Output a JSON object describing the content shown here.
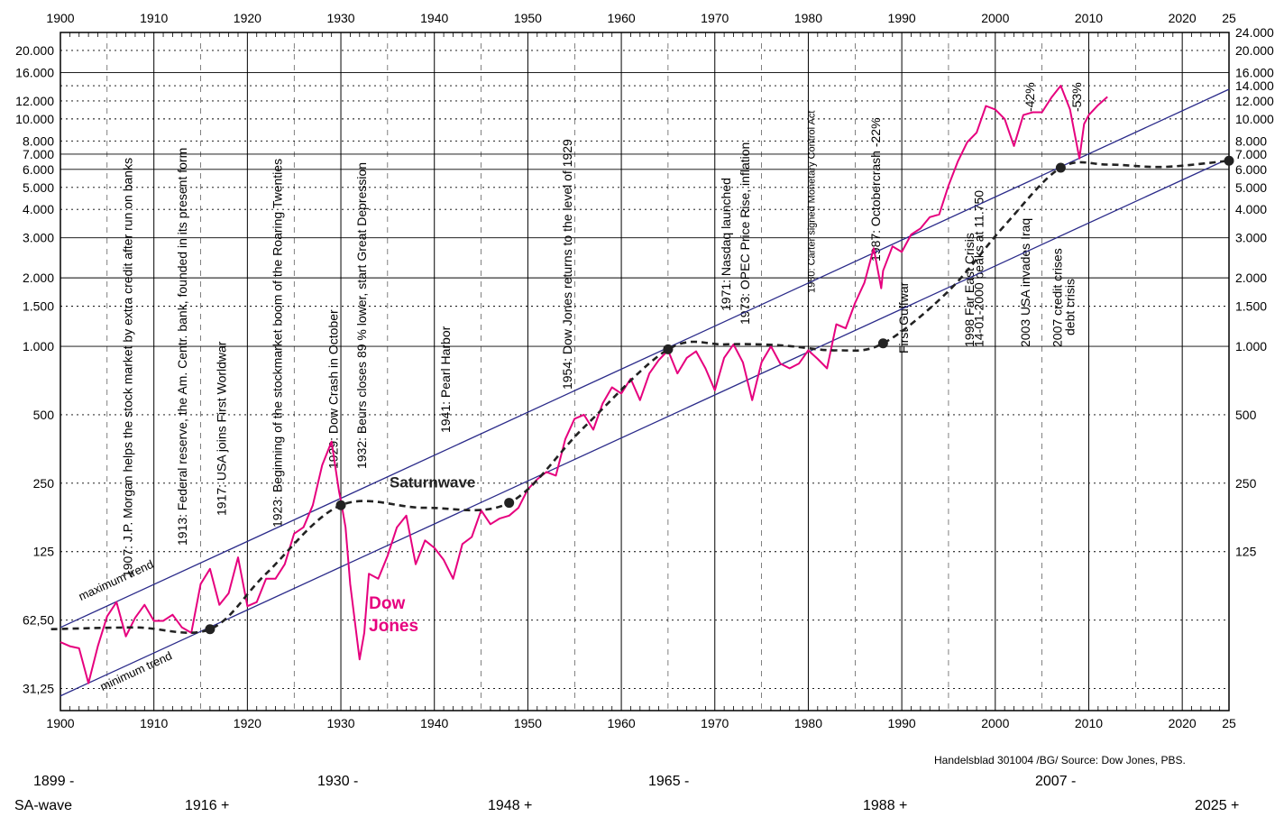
{
  "chart_data": {
    "type": "line",
    "x_axis": {
      "range": [
        1900,
        2025
      ],
      "tick_labels": [
        "1900",
        "1910",
        "1920",
        "1930",
        "1940",
        "1950",
        "1960",
        "1970",
        "1980",
        "1990",
        "2000",
        "2010",
        "2020",
        "25"
      ]
    },
    "y_axis": {
      "scale": "log",
      "range": [
        25,
        24000
      ],
      "left_tick_labels": [
        {
          "value": 31.25,
          "label": "31,25"
        },
        {
          "value": 62.5,
          "label": "62,50"
        },
        {
          "value": 125,
          "label": "125"
        },
        {
          "value": 250,
          "label": "250"
        },
        {
          "value": 500,
          "label": "500"
        },
        {
          "value": 1000,
          "label": "1.000"
        },
        {
          "value": 1500,
          "label": "1.500"
        },
        {
          "value": 2000,
          "label": "2.000"
        },
        {
          "value": 3000,
          "label": "3.000"
        },
        {
          "value": 4000,
          "label": "4.000"
        },
        {
          "value": 5000,
          "label": "5.000"
        },
        {
          "value": 6000,
          "label": "6.000"
        },
        {
          "value": 7000,
          "label": "7.000"
        },
        {
          "value": 8000,
          "label": "8.000"
        },
        {
          "value": 10000,
          "label": "10.000"
        },
        {
          "value": 12000,
          "label": "12.000"
        },
        {
          "value": 16000,
          "label": "16.000"
        },
        {
          "value": 20000,
          "label": "20.000"
        }
      ],
      "right_tick_labels": [
        {
          "value": 125,
          "label": "125"
        },
        {
          "value": 250,
          "label": "250"
        },
        {
          "value": 500,
          "label": "500"
        },
        {
          "value": 1000,
          "label": "1.000"
        },
        {
          "value": 1500,
          "label": "1.500"
        },
        {
          "value": 2000,
          "label": "2.000"
        },
        {
          "value": 3000,
          "label": "3.000"
        },
        {
          "value": 4000,
          "label": "4.000"
        },
        {
          "value": 5000,
          "label": "5.000"
        },
        {
          "value": 6000,
          "label": "6.000"
        },
        {
          "value": 7000,
          "label": "7.000"
        },
        {
          "value": 8000,
          "label": "8.000"
        },
        {
          "value": 10000,
          "label": "10.000"
        },
        {
          "value": 12000,
          "label": "12.000"
        },
        {
          "value": 14000,
          "label": "14.000"
        },
        {
          "value": 16000,
          "label": "16.000"
        },
        {
          "value": 20000,
          "label": "20.000"
        },
        {
          "value": 24000,
          "label": "24.000"
        }
      ]
    },
    "grid": true,
    "series": [
      {
        "name": "Dow Jones",
        "color": "#e6007e",
        "style": "solid",
        "points": [
          [
            1900,
            50
          ],
          [
            1901,
            48
          ],
          [
            1902,
            47
          ],
          [
            1903,
            33
          ],
          [
            1904,
            48
          ],
          [
            1905,
            65
          ],
          [
            1906,
            75
          ],
          [
            1907,
            53
          ],
          [
            1908,
            64
          ],
          [
            1909,
            73
          ],
          [
            1910,
            62
          ],
          [
            1911,
            62
          ],
          [
            1912,
            66
          ],
          [
            1913,
            58
          ],
          [
            1914,
            55
          ],
          [
            1915,
            90
          ],
          [
            1916,
            105
          ],
          [
            1917,
            73
          ],
          [
            1918,
            82
          ],
          [
            1919,
            118
          ],
          [
            1920,
            72
          ],
          [
            1921,
            75
          ],
          [
            1922,
            95
          ],
          [
            1923,
            95
          ],
          [
            1924,
            110
          ],
          [
            1925,
            150
          ],
          [
            1926,
            160
          ],
          [
            1927,
            200
          ],
          [
            1928,
            300
          ],
          [
            1929,
            381
          ],
          [
            1929.8,
            230
          ],
          [
            1930,
            210
          ],
          [
            1930.5,
            160
          ],
          [
            1931,
            90
          ],
          [
            1932,
            42
          ],
          [
            1932.5,
            55
          ],
          [
            1933,
            100
          ],
          [
            1934,
            95
          ],
          [
            1935,
            120
          ],
          [
            1936,
            160
          ],
          [
            1937,
            180
          ],
          [
            1938,
            110
          ],
          [
            1939,
            140
          ],
          [
            1940,
            130
          ],
          [
            1941,
            115
          ],
          [
            1942,
            95
          ],
          [
            1943,
            135
          ],
          [
            1944,
            145
          ],
          [
            1945,
            190
          ],
          [
            1946,
            165
          ],
          [
            1947,
            175
          ],
          [
            1948,
            180
          ],
          [
            1949,
            195
          ],
          [
            1950,
            235
          ],
          [
            1951,
            260
          ],
          [
            1952,
            280
          ],
          [
            1953,
            270
          ],
          [
            1954,
            390
          ],
          [
            1955,
            480
          ],
          [
            1956,
            500
          ],
          [
            1957,
            430
          ],
          [
            1958,
            560
          ],
          [
            1959,
            660
          ],
          [
            1960,
            620
          ],
          [
            1961,
            720
          ],
          [
            1962,
            580
          ],
          [
            1963,
            760
          ],
          [
            1964,
            870
          ],
          [
            1965,
            960
          ],
          [
            1966,
            760
          ],
          [
            1967,
            890
          ],
          [
            1968,
            950
          ],
          [
            1969,
            800
          ],
          [
            1970,
            640
          ],
          [
            1971,
            890
          ],
          [
            1972,
            1020
          ],
          [
            1973,
            850
          ],
          [
            1974,
            580
          ],
          [
            1975,
            850
          ],
          [
            1976,
            1000
          ],
          [
            1977,
            840
          ],
          [
            1978,
            800
          ],
          [
            1979,
            840
          ],
          [
            1980,
            960
          ],
          [
            1981,
            880
          ],
          [
            1982,
            800
          ],
          [
            1983,
            1250
          ],
          [
            1984,
            1200
          ],
          [
            1985,
            1550
          ],
          [
            1986,
            1900
          ],
          [
            1987,
            2700
          ],
          [
            1987.8,
            1800
          ],
          [
            1988,
            2150
          ],
          [
            1989,
            2750
          ],
          [
            1990,
            2600
          ],
          [
            1991,
            3100
          ],
          [
            1992,
            3300
          ],
          [
            1993,
            3700
          ],
          [
            1994,
            3800
          ],
          [
            1995,
            5100
          ],
          [
            1996,
            6500
          ],
          [
            1997,
            7900
          ],
          [
            1998,
            8700
          ],
          [
            1999,
            11400
          ],
          [
            2000,
            11000
          ],
          [
            2001,
            10000
          ],
          [
            2002,
            7600
          ],
          [
            2003,
            10400
          ],
          [
            2004,
            10700
          ],
          [
            2005,
            10700
          ],
          [
            2006,
            12400
          ],
          [
            2007,
            14000
          ],
          [
            2008,
            11000
          ],
          [
            2009,
            6700
          ],
          [
            2009.5,
            9500
          ],
          [
            2010,
            10400
          ],
          [
            2011,
            11500
          ],
          [
            2012,
            12500
          ]
        ]
      },
      {
        "name": "Saturnwave",
        "color": "#222222",
        "style": "dashed",
        "points": [
          [
            1899,
            57
          ],
          [
            1908,
            58
          ],
          [
            1916,
            57
          ],
          [
            1922,
            100
          ],
          [
            1930,
            200
          ],
          [
            1939,
            195
          ],
          [
            1948,
            205
          ],
          [
            1956,
            440
          ],
          [
            1965,
            970
          ],
          [
            1971,
            1020
          ],
          [
            1977,
            1010
          ],
          [
            1983,
            960
          ],
          [
            1988,
            1030
          ],
          [
            1995,
            1750
          ],
          [
            2001,
            3400
          ],
          [
            2007,
            6100
          ],
          [
            2012,
            6300
          ],
          [
            2018,
            6150
          ],
          [
            2025,
            6550
          ]
        ]
      },
      {
        "name": "maximum trend",
        "color": "#2b2b8a",
        "style": "solid",
        "points": [
          [
            1900,
            58
          ],
          [
            2025,
            13500
          ]
        ]
      },
      {
        "name": "minimum trend",
        "color": "#2b2b8a",
        "style": "solid",
        "points": [
          [
            1900,
            29
          ],
          [
            2025,
            6700
          ]
        ]
      }
    ],
    "saturn_points": [
      [
        1916,
        57
      ],
      [
        1930,
        200
      ],
      [
        1948,
        205
      ],
      [
        1965,
        970
      ],
      [
        1988,
        1030
      ],
      [
        2007,
        6100
      ],
      [
        2025,
        6550
      ]
    ],
    "labels": {
      "series_dow": [
        "Dow",
        "Jones"
      ],
      "saturnwave": "Saturnwave",
      "max_trend": "maximum trend",
      "min_trend": "minimum trend"
    },
    "events": [
      {
        "year": 1907,
        "text": "1907: J.P. Morgan helps the stock market by extra credit after run on banks"
      },
      {
        "year": 1913,
        "text": "1913: Federal reserve, the Am. Centr. bank, founded in its present form"
      },
      {
        "year": 1917,
        "text": "1917: USA joins First Worldwar"
      },
      {
        "year": 1923,
        "text": "1923: Beginning of the stockmarket boom of the Roaring Twenties"
      },
      {
        "year": 1929,
        "text": "1929: Dow Crash in October"
      },
      {
        "year": 1932,
        "text": "1932: Beurs closes 89 % lower, start Great Depression"
      },
      {
        "year": 1941,
        "text": "1941: Pearl Harbor"
      },
      {
        "year": 1954,
        "text": "1954: Dow Jones returns to the level of 1929"
      },
      {
        "year": 1971,
        "text": "1971: Nasdaq launched"
      },
      {
        "year": 1973,
        "text": "1973: OPEC Price Rise, inflation"
      },
      {
        "year": 1980,
        "text": "1980: Carter signed Monetary Control Act",
        "small": true
      },
      {
        "year": 1987,
        "text": "1987: Octobercrash -22%"
      },
      {
        "year": 1990,
        "text": "First Gulfwar"
      },
      {
        "year": 1998,
        "text": "1998 Far East Crisis"
      },
      {
        "year": 1999,
        "text": "14-01-2000 peaks at 11.750"
      },
      {
        "year": 2003,
        "text": "2003 USA invades Iraq"
      },
      {
        "year": 2007,
        "text": "2007 credit crises"
      },
      {
        "year": 2008,
        "text": "debt crisis"
      },
      {
        "year": 2003.5,
        "text": "-42%"
      },
      {
        "year": 2008.5,
        "text": "-53%"
      }
    ]
  },
  "footer": {
    "source": "Handelsblad 301004 /BG/ Source: Dow Jones, PBS.",
    "sa_label": "SA-wave",
    "wave_dates": [
      "1899 -",
      "1916 +",
      "1930 -",
      "1948 +",
      "1965 -",
      "1988 +",
      "2007 -",
      "2025 +"
    ]
  }
}
